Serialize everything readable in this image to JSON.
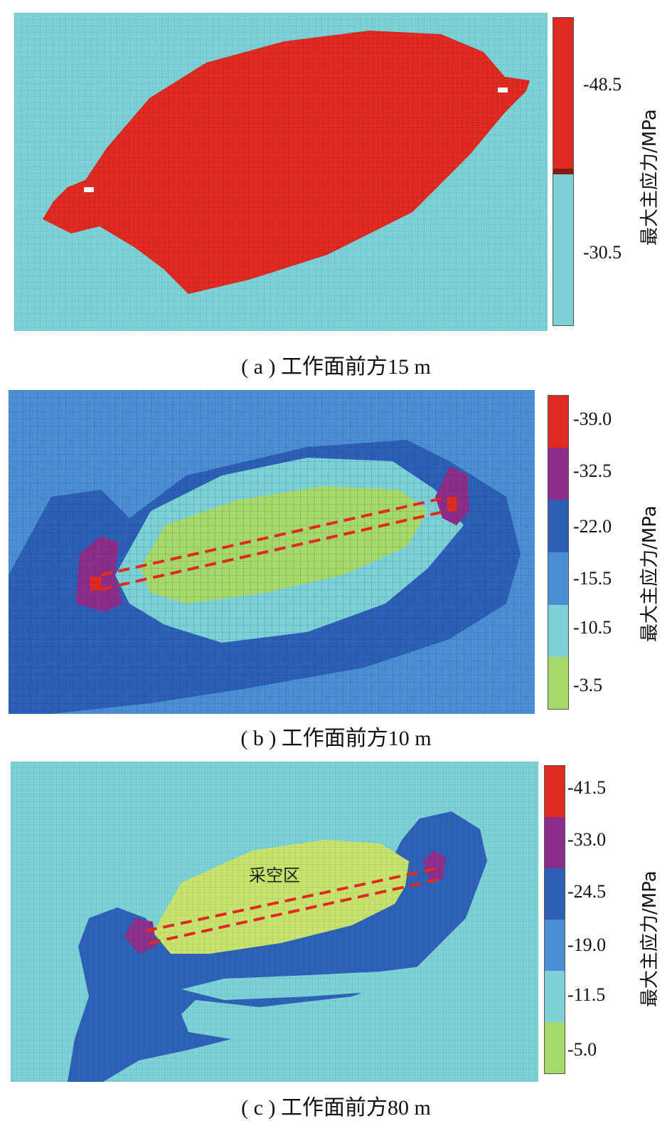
{
  "panels": [
    {
      "id": "a",
      "caption": "( a ) 工作面前方15 m",
      "colorbar_title": "最大主应力/MPa",
      "colors": [
        "#e02a22",
        "#7bd1d6"
      ],
      "ticks": [
        "-48.5",
        "-30.5"
      ]
    },
    {
      "id": "b",
      "caption": "( b ) 工作面前方10 m",
      "colorbar_title": "最大主应力/MPa",
      "colors": [
        "#e02a22",
        "#8e2c8a",
        "#2c5fb5",
        "#4a8fd3",
        "#7bd1d6",
        "#a7d86a"
      ],
      "ticks": [
        "-39.0",
        "-32.5",
        "-22.0",
        "-15.5",
        "-10.5",
        "-3.5"
      ]
    },
    {
      "id": "c",
      "caption": "( c ) 工作面前方80 m",
      "colorbar_title": "最大主应力/MPa",
      "colors": [
        "#e02a22",
        "#8e2c8a",
        "#2c5fb5",
        "#4a8fd3",
        "#7bd1d6",
        "#a7d86a"
      ],
      "ticks": [
        "-41.5",
        "-33.0",
        "-24.5",
        "-19.0",
        "-11.5",
        "-5.0"
      ],
      "annotation": "采空区"
    }
  ]
}
